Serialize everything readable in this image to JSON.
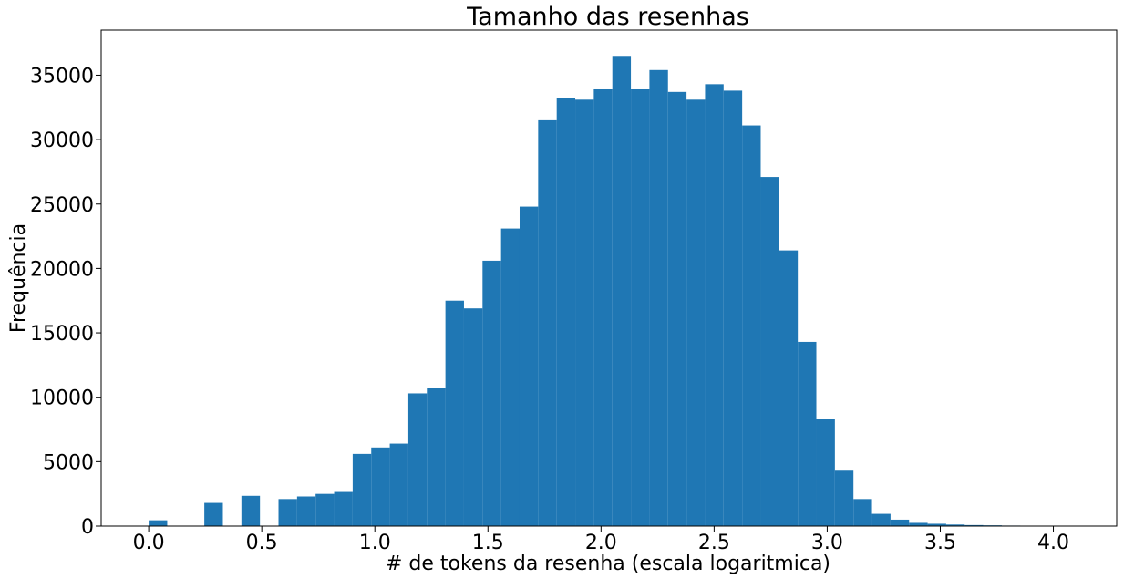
{
  "chart_data": {
    "type": "bar",
    "title": "Tamanho das resenhas",
    "xlabel": "# de tokens da resenha (escala logaritmica)",
    "ylabel": "Frequência",
    "xlim": [
      -0.21,
      4.28
    ],
    "ylim": [
      0,
      38500
    ],
    "x_ticks": [
      0.0,
      0.5,
      1.0,
      1.5,
      2.0,
      2.5,
      3.0,
      3.5,
      4.0
    ],
    "x_tick_labels": [
      "0.0",
      "0.5",
      "1.0",
      "1.5",
      "2.0",
      "2.5",
      "3.0",
      "3.5",
      "4.0"
    ],
    "y_ticks": [
      0,
      5000,
      10000,
      15000,
      20000,
      25000,
      30000,
      35000
    ],
    "y_tick_labels": [
      "0",
      "5000",
      "10000",
      "15000",
      "20000",
      "25000",
      "30000",
      "35000"
    ],
    "grid": false,
    "legend": "none",
    "bar_color": "#1f77b4",
    "bin_edges": [
      0.0,
      0.082,
      0.164,
      0.246,
      0.328,
      0.41,
      0.492,
      0.574,
      0.656,
      0.738,
      0.82,
      0.902,
      0.984,
      1.066,
      1.148,
      1.23,
      1.312,
      1.394,
      1.476,
      1.558,
      1.64,
      1.722,
      1.804,
      1.886,
      1.968,
      2.05,
      2.132,
      2.214,
      2.296,
      2.378,
      2.46,
      2.542,
      2.624,
      2.706,
      2.788,
      2.87,
      2.952,
      3.034,
      3.116,
      3.198,
      3.28,
      3.362,
      3.444,
      3.526,
      3.608,
      3.69,
      3.772,
      3.854,
      3.936,
      4.018,
      4.1
    ],
    "values": [
      450,
      0,
      0,
      1800,
      0,
      2350,
      0,
      2100,
      2300,
      2500,
      2650,
      5600,
      6100,
      6400,
      10300,
      10700,
      17500,
      16900,
      20600,
      23100,
      24800,
      31500,
      33200,
      33100,
      33900,
      36500,
      33900,
      35400,
      33700,
      33100,
      34300,
      33800,
      31100,
      27100,
      21400,
      14300,
      8300,
      4300,
      2100,
      950,
      500,
      250,
      180,
      120,
      80,
      60,
      40,
      20,
      10,
      5
    ]
  }
}
